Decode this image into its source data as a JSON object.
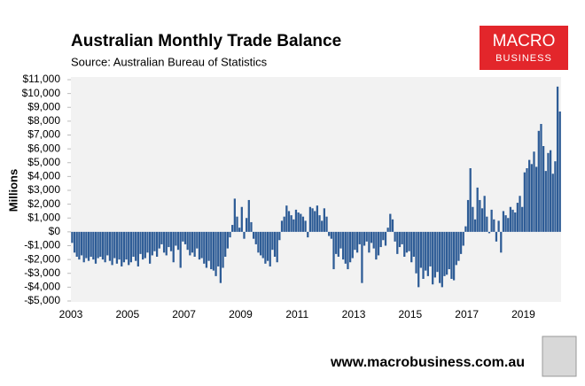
{
  "chart_data": {
    "type": "bar",
    "title": "Australian Monthly Trade Balance",
    "subtitle": "Source: Australian Bureau of Statistics",
    "y_label": "Millions",
    "logo": [
      "MACRO",
      "BUSINESS"
    ],
    "footer": "www.macrobusiness.com.au",
    "color": "#2e5c96",
    "background": "#f2f2f2",
    "categories": [
      "2003",
      null,
      null,
      null,
      null,
      null,
      null,
      null,
      null,
      null,
      null,
      null,
      null,
      null,
      null,
      null,
      null,
      null,
      null,
      null,
      null,
      null,
      null,
      null,
      "2005",
      null,
      null,
      null,
      null,
      null,
      null,
      null,
      null,
      null,
      null,
      null,
      null,
      null,
      null,
      null,
      null,
      null,
      null,
      null,
      null,
      null,
      null,
      null,
      "2007",
      null,
      null,
      null,
      null,
      null,
      null,
      null,
      null,
      null,
      null,
      null,
      null,
      null,
      null,
      null,
      null,
      null,
      null,
      null,
      null,
      null,
      null,
      null,
      "2009",
      null,
      null,
      null,
      null,
      null,
      null,
      null,
      null,
      null,
      null,
      null,
      null,
      null,
      null,
      null,
      null,
      null,
      null,
      null,
      null,
      null,
      null,
      null,
      "2011",
      null,
      null,
      null,
      null,
      null,
      null,
      null,
      null,
      null,
      null,
      null,
      null,
      null,
      null,
      null,
      null,
      null,
      null,
      null,
      null,
      null,
      null,
      null,
      "2013",
      null,
      null,
      null,
      null,
      null,
      null,
      null,
      null,
      null,
      null,
      null,
      null,
      null,
      null,
      null,
      null,
      null,
      null,
      null,
      null,
      null,
      null,
      null,
      "2015",
      null,
      null,
      null,
      null,
      null,
      null,
      null,
      null,
      null,
      null,
      null,
      null,
      null,
      null,
      null,
      null,
      null,
      null,
      null,
      null,
      null,
      null,
      null,
      "2017",
      null,
      null,
      null,
      null,
      null,
      null,
      null,
      null,
      null,
      null,
      null,
      null,
      null,
      null,
      null,
      null,
      null,
      null,
      null,
      null,
      null,
      null,
      null,
      "2019",
      null,
      null,
      null,
      null,
      null,
      null,
      null,
      null,
      null,
      null,
      null,
      null,
      null,
      null,
      null
    ],
    "values": [
      -800,
      -1500,
      -1800,
      -2000,
      -1700,
      -2200,
      -1900,
      -2100,
      -1800,
      -2000,
      -2300,
      -1900,
      -1800,
      -2000,
      -2200,
      -1700,
      -2100,
      -2400,
      -1900,
      -2300,
      -2000,
      -2500,
      -2200,
      -2000,
      -2400,
      -2200,
      -1800,
      -2100,
      -2500,
      -1600,
      -2000,
      -1900,
      -1500,
      -2300,
      -1700,
      -1400,
      -1800,
      -1200,
      -900,
      -1500,
      -1700,
      -1100,
      -1400,
      -2200,
      -1000,
      -1300,
      -2600,
      -700,
      -900,
      -1300,
      -1700,
      -1500,
      -1800,
      -1200,
      -2000,
      -1900,
      -2300,
      -2600,
      -2100,
      -2700,
      -2800,
      -3200,
      -2500,
      -3700,
      -2600,
      -1800,
      -1200,
      -400,
      500,
      2400,
      1100,
      300,
      1800,
      -500,
      1000,
      2300,
      700,
      -500,
      -900,
      -1500,
      -1700,
      -1900,
      -2300,
      -2100,
      -2500,
      -1300,
      -1800,
      -2200,
      -600,
      800,
      1100,
      1900,
      1500,
      1200,
      900,
      1600,
      1400,
      1300,
      1100,
      800,
      -400,
      1800,
      1700,
      1500,
      1900,
      1200,
      800,
      1700,
      1100,
      -300,
      -500,
      -2700,
      -1600,
      -1800,
      -1200,
      -2000,
      -2300,
      -2700,
      -2200,
      -1900,
      -1300,
      -1500,
      -900,
      -3700,
      -1000,
      -700,
      -1500,
      -800,
      -1200,
      -2000,
      -1700,
      -1100,
      -600,
      -1000,
      300,
      1300,
      900,
      -700,
      -1600,
      -1100,
      -900,
      -1800,
      -1500,
      -1400,
      -2200,
      -1800,
      -3000,
      -4000,
      -2600,
      -3400,
      -2800,
      -3200,
      -2500,
      -3800,
      -3300,
      -2900,
      -3700,
      -4000,
      -3200,
      -3100,
      -2700,
      -3400,
      -3500,
      -2400,
      -2100,
      -1600,
      -1000,
      400,
      2300,
      4600,
      1800,
      900,
      3200,
      2300,
      1700,
      2600,
      1100,
      -100,
      1600,
      900,
      -700,
      800,
      -1500,
      1500,
      1200,
      1000,
      1800,
      1600,
      1400,
      2100,
      2600,
      1800,
      4300,
      4600,
      5200,
      4900,
      5800,
      4700,
      7300,
      7800,
      6200,
      4400,
      5700,
      5900,
      4200,
      5100,
      10500,
      8700
    ],
    "ylim": [
      -5000,
      11000
    ],
    "yticks": [
      {
        "value": -5000,
        "label": "-$5,000"
      },
      {
        "value": -4000,
        "label": "-$4,000"
      },
      {
        "value": -3000,
        "label": "-$3,000"
      },
      {
        "value": -2000,
        "label": "-$2,000"
      },
      {
        "value": -1000,
        "label": "-$1,000"
      },
      {
        "value": 0,
        "label": "$0"
      },
      {
        "value": 1000,
        "label": "$1,000"
      },
      {
        "value": 2000,
        "label": "$2,000"
      },
      {
        "value": 3000,
        "label": "$3,000"
      },
      {
        "value": 4000,
        "label": "$4,000"
      },
      {
        "value": 5000,
        "label": "$5,000"
      },
      {
        "value": 6000,
        "label": "$6,000"
      },
      {
        "value": 7000,
        "label": "$7,000"
      },
      {
        "value": 8000,
        "label": "$8,000"
      },
      {
        "value": 9000,
        "label": "$9,000"
      },
      {
        "value": 10000,
        "label": "$10,000"
      },
      {
        "value": 11000,
        "label": "$11,000"
      }
    ]
  }
}
